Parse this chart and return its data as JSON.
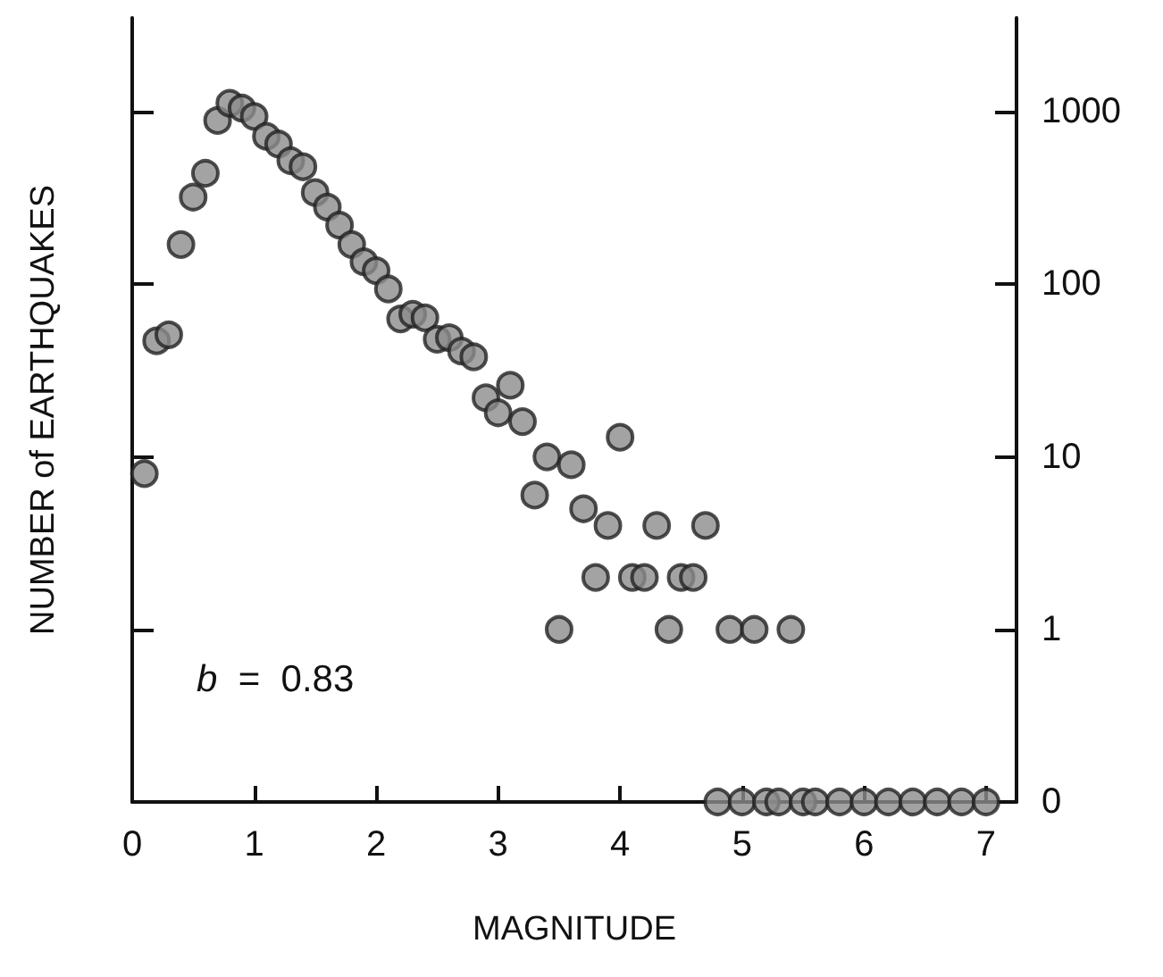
{
  "chart_data": {
    "type": "scatter",
    "xlabel": "MAGNITUDE",
    "ylabel": "NUMBER of EARTHQUAKES",
    "x": [
      0.1,
      0.2,
      0.3,
      0.4,
      0.5,
      0.6,
      0.7,
      0.8,
      0.9,
      1.0,
      1.1,
      1.2,
      1.3,
      1.4,
      1.5,
      1.6,
      1.7,
      1.8,
      1.9,
      2.0,
      2.1,
      2.2,
      2.3,
      2.4,
      2.5,
      2.6,
      2.7,
      2.8,
      2.9,
      3.0,
      3.1,
      3.2,
      3.3,
      3.4,
      3.5,
      3.6,
      3.7,
      3.8,
      3.9,
      4.0,
      4.1,
      4.2,
      4.3,
      4.4,
      4.5,
      4.6,
      4.7,
      4.8,
      4.9,
      5.0,
      5.1,
      5.2,
      5.3,
      5.4,
      5.5,
      5.6,
      5.8,
      6.0,
      6.2,
      6.4,
      6.6,
      6.8,
      7.0
    ],
    "series": [
      {
        "color": "#8c8c8c",
        "values": [
          8,
          47,
          51,
          170,
          320,
          440,
          890,
          1120,
          1050,
          940,
          720,
          650,
          520,
          480,
          340,
          280,
          220,
          170,
          135,
          120,
          94,
          63,
          67,
          64,
          48,
          49,
          41,
          38,
          22,
          18,
          26,
          16,
          6,
          10,
          1,
          9,
          5,
          2,
          4,
          13,
          2,
          2,
          4,
          1,
          2,
          2,
          4,
          0.1,
          1,
          0.1,
          1,
          0.1,
          0.1,
          1,
          0.1,
          0.1,
          0.1,
          0.1,
          0.1,
          0.1,
          0.1,
          0.1,
          0.1
        ]
      }
    ],
    "xlim": [
      0,
      7.25
    ],
    "xticks": [
      0,
      1,
      2,
      3,
      4,
      5,
      6,
      7
    ],
    "ylim": [
      0.1,
      3500
    ],
    "yticks": [
      {
        "value": 0.1,
        "label": "0"
      },
      1,
      10,
      100,
      1000
    ],
    "log": "y",
    "marker": "circle",
    "grid": false,
    "annotations": [
      "b = 0.83"
    ]
  }
}
